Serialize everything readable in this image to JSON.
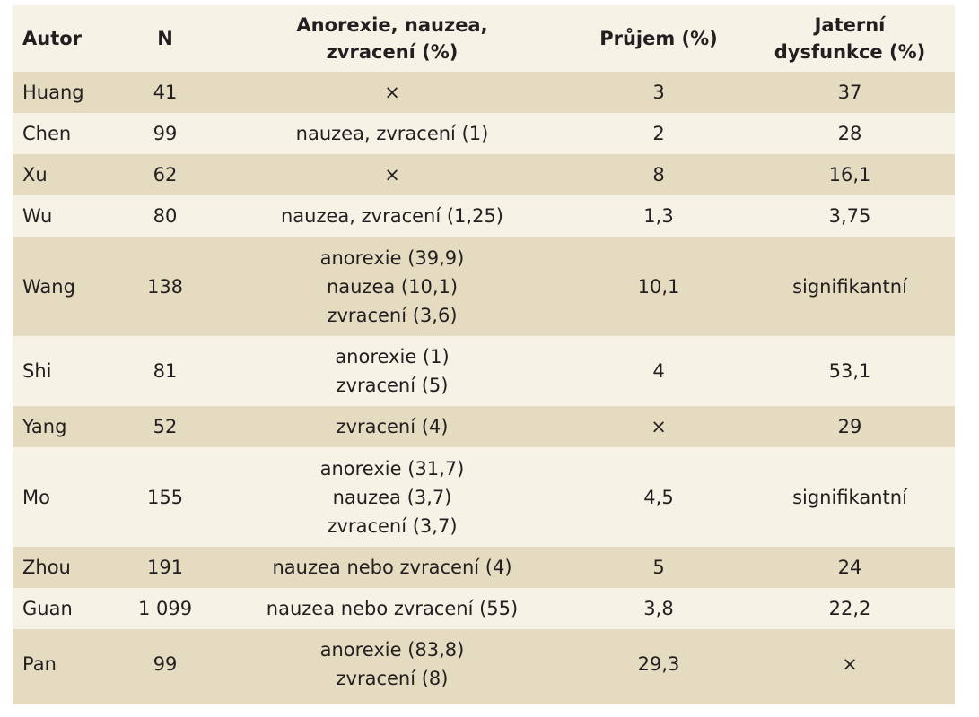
{
  "table": {
    "headers": [
      [
        "Autor"
      ],
      [
        "N"
      ],
      [
        "Anorexie, nauzea,",
        "zvracení (%)"
      ],
      [
        "Průjem (%)"
      ],
      [
        "Jaterní",
        "dysfunkce (%)"
      ]
    ],
    "rows": [
      {
        "autor": "Huang",
        "n": "41",
        "ae": [
          "×"
        ],
        "prujem": "3",
        "jater": "37"
      },
      {
        "autor": "Chen",
        "n": "99",
        "ae": [
          "nauzea, zvracení (1)"
        ],
        "prujem": "2",
        "jater": "28"
      },
      {
        "autor": "Xu",
        "n": "62",
        "ae": [
          "×"
        ],
        "prujem": "8",
        "jater": "16,1"
      },
      {
        "autor": "Wu",
        "n": "80",
        "ae": [
          "nauzea, zvracení (1,25)"
        ],
        "prujem": "1,3",
        "jater": "3,75"
      },
      {
        "autor": "Wang",
        "n": "138",
        "ae": [
          "anorexie (39,9)",
          "nauzea (10,1)",
          "zvracení (3,6)"
        ],
        "prujem": "10,1",
        "jater": "signifikantní"
      },
      {
        "autor": "Shi",
        "n": "81",
        "ae": [
          "anorexie (1)",
          "zvracení (5)"
        ],
        "prujem": "4",
        "jater": "53,1"
      },
      {
        "autor": "Yang",
        "n": "52",
        "ae": [
          "zvracení (4)"
        ],
        "prujem": "×",
        "jater": "29"
      },
      {
        "autor": "Mo",
        "n": "155",
        "ae": [
          "anorexie (31,7)",
          "nauzea (3,7)",
          "zvracení (3,7)"
        ],
        "prujem": "4,5",
        "jater": "signifikantní"
      },
      {
        "autor": "Zhou",
        "n": "191",
        "ae": [
          "nauzea nebo zvracení (4)"
        ],
        "prujem": "5",
        "jater": "24"
      },
      {
        "autor": "Guan",
        "n": "1 099",
        "ae": [
          "nauzea nebo zvracení (55)"
        ],
        "prujem": "3,8",
        "jater": "22,2"
      },
      {
        "autor": "Pan",
        "n": "99",
        "ae": [
          "anorexie (83,8)",
          "zvracení (8)"
        ],
        "prujem": "29,3",
        "jater": "×"
      }
    ]
  }
}
